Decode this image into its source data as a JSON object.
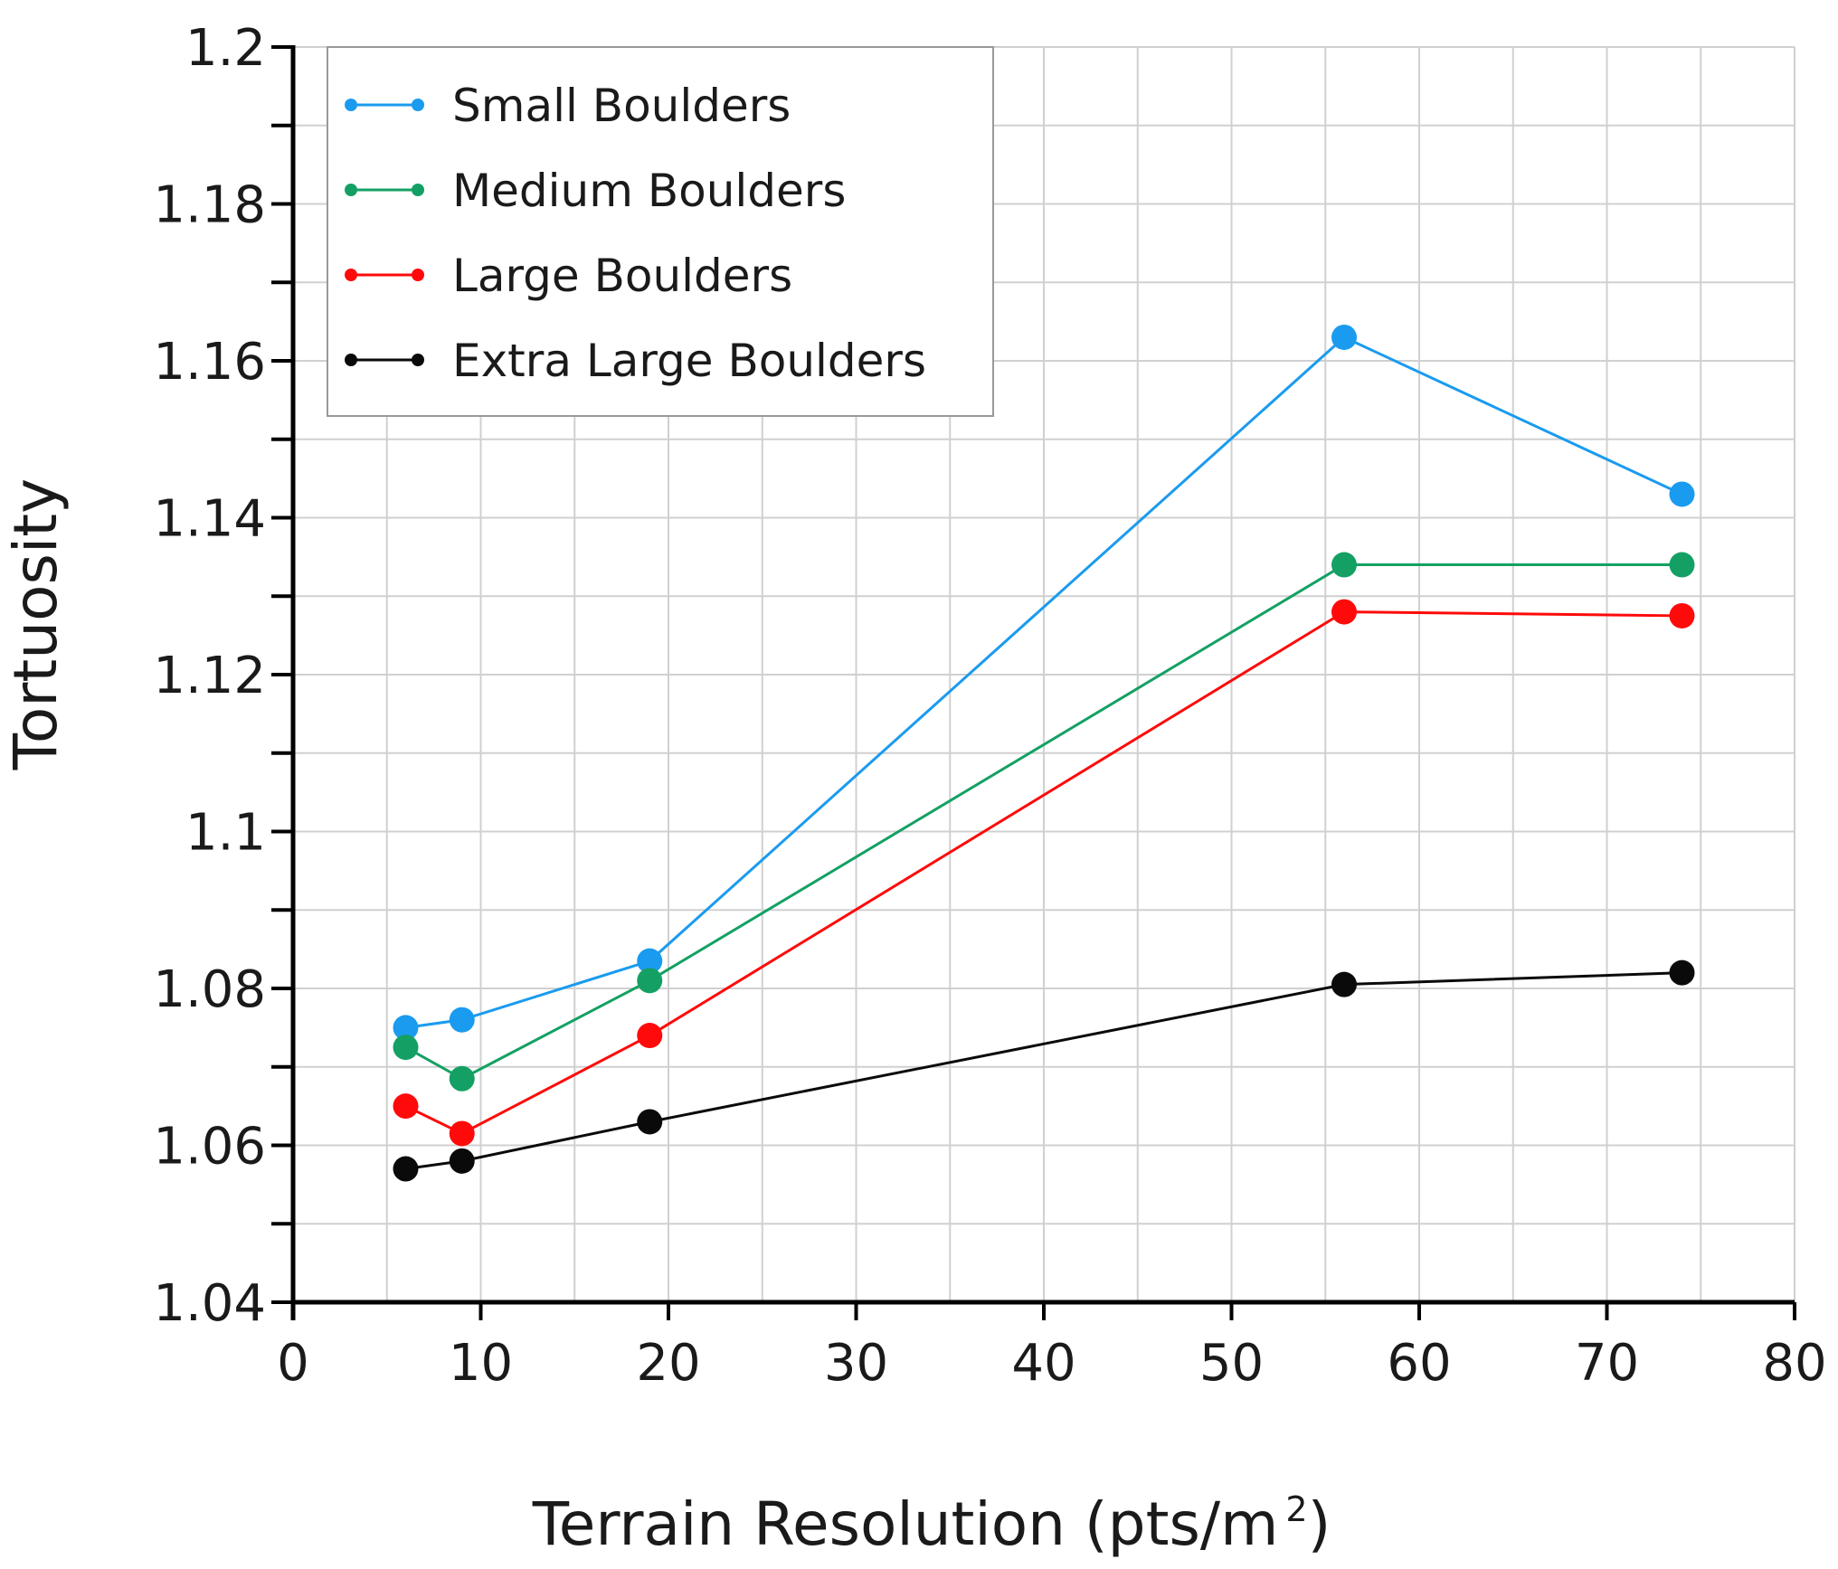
{
  "chart_data": {
    "type": "line",
    "title": "",
    "xlabel": "Terrain Resolution (pts/m",
    "xlabel_sup": "2",
    "xlabel_close": ")",
    "ylabel": "Tortuosity",
    "xlim": [
      0,
      80
    ],
    "ylim": [
      1.04,
      1.2
    ],
    "x_ticks": [
      0,
      10,
      20,
      30,
      40,
      50,
      60,
      70,
      80
    ],
    "x_tick_labels": [
      "0",
      "10",
      "20",
      "30",
      "40",
      "50",
      "60",
      "70",
      "80"
    ],
    "y_ticks": [
      1.04,
      1.06,
      1.08,
      1.1,
      1.12,
      1.14,
      1.16,
      1.18,
      1.2
    ],
    "y_tick_labels": [
      "1.04",
      "1.06",
      "1.08",
      "1.1",
      "1.12",
      "1.14",
      "1.16",
      "1.18",
      "1.2"
    ],
    "x_grid_step": 5,
    "y_grid_step": 0.01,
    "grid": true,
    "legend_position": "top-left",
    "x": [
      6,
      9,
      19,
      56,
      74
    ],
    "series": [
      {
        "name": "Small Boulders",
        "color": "#1a9bef",
        "values": [
          1.075,
          1.076,
          1.0835,
          1.163,
          1.143
        ]
      },
      {
        "name": "Medium Boulders",
        "color": "#14a064",
        "values": [
          1.0725,
          1.0685,
          1.081,
          1.134,
          1.134
        ]
      },
      {
        "name": "Large Boulders",
        "color": "#ff0a0a",
        "values": [
          1.065,
          1.0615,
          1.074,
          1.128,
          1.1275
        ]
      },
      {
        "name": "Extra Large Boulders",
        "color": "#0a0a0a",
        "values": [
          1.057,
          1.058,
          1.063,
          1.0805,
          1.082
        ]
      }
    ]
  }
}
